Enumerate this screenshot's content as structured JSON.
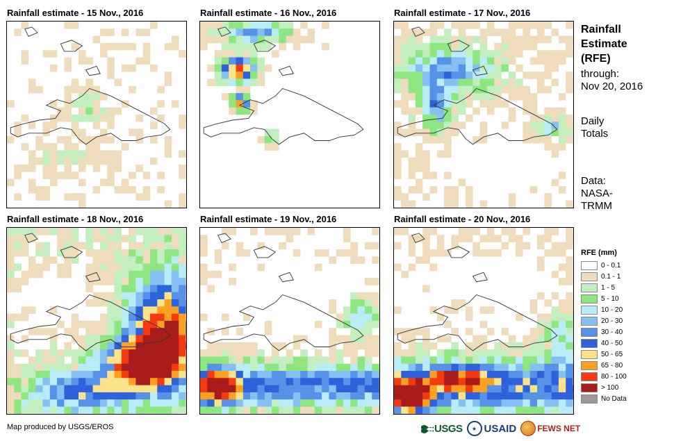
{
  "panels": [
    {
      "id": "p15",
      "title": "Rainfall estimate - 15 Nov., 2016",
      "pattern": "dry_scattered"
    },
    {
      "id": "p16",
      "title": "Rainfall estimate - 16 Nov., 2016",
      "pattern": "northwest_storm"
    },
    {
      "id": "p17",
      "title": "Rainfall estimate - 17 Nov., 2016",
      "pattern": "north_moderate"
    },
    {
      "id": "p18",
      "title": "Rainfall estimate - 18 Nov., 2016",
      "pattern": "southeast_heavy"
    },
    {
      "id": "p19",
      "title": "Rainfall estimate - 19 Nov., 2016",
      "pattern": "southwest_band"
    },
    {
      "id": "p20",
      "title": "Rainfall estimate - 20 Nov., 2016",
      "pattern": "south_heavy"
    }
  ],
  "sidebar": {
    "heading_line1": "Rainfall",
    "heading_line2": "Estimate",
    "heading_line3": "(RFE)",
    "through_label": "through:",
    "through_date": "Nov 20, 2016",
    "totals_line1": "Daily",
    "totals_line2": "Totals",
    "data_label": "Data:",
    "data_source_line1": "NASA-",
    "data_source_line2": "TRMM"
  },
  "legend": {
    "title": "RFE (mm)",
    "items": [
      {
        "label": "0 - 0.1",
        "color": "#ffffff"
      },
      {
        "label": "0.1 - 1",
        "color": "#efdcbd"
      },
      {
        "label": "1 - 5",
        "color": "#c3eec0"
      },
      {
        "label": "5 - 10",
        "color": "#8ee680"
      },
      {
        "label": "10 - 20",
        "color": "#b9ecf6"
      },
      {
        "label": "20 - 30",
        "color": "#86bff2"
      },
      {
        "label": "30 - 40",
        "color": "#5592e8"
      },
      {
        "label": "40 - 50",
        "color": "#2e62da"
      },
      {
        "label": "50 - 65",
        "color": "#fbe38a"
      },
      {
        "label": "65 - 80",
        "color": "#fba021"
      },
      {
        "label": "80 - 100",
        "color": "#f43b0f"
      },
      {
        "label": "> 100",
        "color": "#a81c1c"
      },
      {
        "label": "No Data",
        "color": "#9a9a9a"
      }
    ]
  },
  "footer": {
    "credit": "Map produced by USGS/EROS",
    "logo_usgs": "USGS",
    "logo_usaid": "USAID",
    "logo_fews": "FEWS NET"
  }
}
